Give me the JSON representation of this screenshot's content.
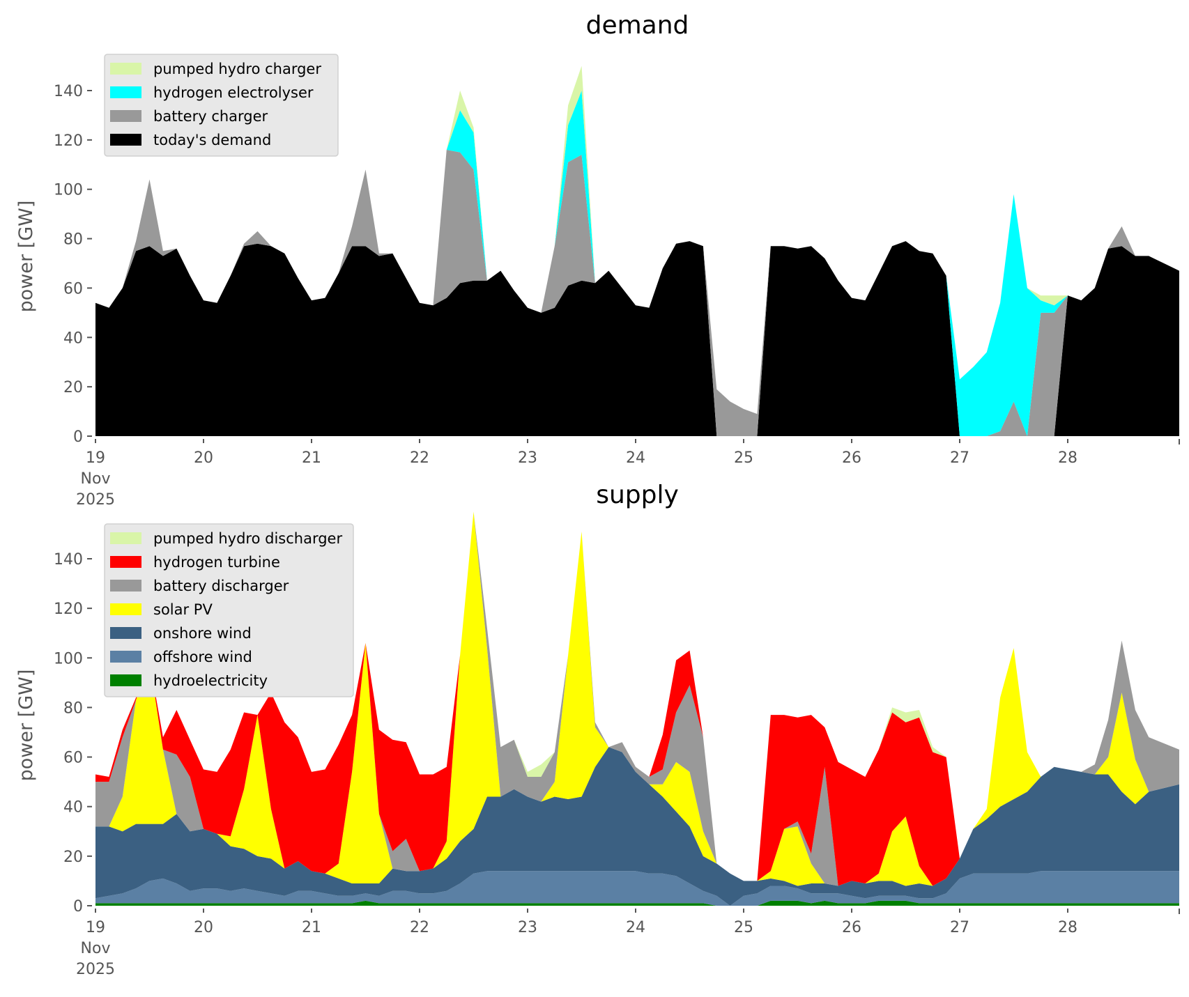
{
  "chart_data": [
    {
      "type": "area",
      "stacked": true,
      "title": "demand",
      "ylabel": "power [GW]",
      "xlabel": "",
      "ylim": [
        0,
        155
      ],
      "xlim": [
        19,
        29
      ],
      "x_start_day": 19,
      "x_step_days": 0.125,
      "yticks": [
        "0",
        "20",
        "40",
        "60",
        "80",
        "100",
        "120",
        "140"
      ],
      "ytick_values": [
        0,
        20,
        40,
        60,
        80,
        100,
        120,
        140
      ],
      "xticks": [
        "19",
        "20",
        "21",
        "22",
        "23",
        "24",
        "25",
        "26",
        "27",
        "28"
      ],
      "xtick_values": [
        19,
        20,
        21,
        22,
        23,
        24,
        25,
        26,
        27,
        28
      ],
      "xtick_sub": [
        "Nov",
        "2025"
      ],
      "legend_position": "top-left",
      "series": [
        {
          "name": "today's demand",
          "color": "#000000",
          "values": [
            54,
            52,
            60,
            75,
            77,
            73,
            76,
            65,
            55,
            54,
            65,
            77,
            78,
            77,
            74,
            64,
            55,
            56,
            66,
            77,
            77,
            73,
            74,
            64,
            54,
            53,
            56,
            62,
            63,
            63,
            67,
            59,
            52,
            50,
            52,
            61,
            63,
            62,
            67,
            60,
            53,
            52,
            68,
            78,
            79,
            77,
            0,
            0,
            0,
            0,
            77,
            77,
            76,
            77,
            72,
            63,
            56,
            55,
            66,
            77,
            79,
            75,
            74,
            65,
            0,
            0,
            0,
            0,
            0,
            0,
            0,
            0,
            57,
            55,
            60,
            76,
            77,
            73,
            73,
            67
          ]
        },
        {
          "name": "battery charger",
          "color": "#999999",
          "values": [
            0,
            0,
            0,
            4,
            27,
            2,
            0,
            0,
            0,
            0,
            0,
            1,
            5,
            0,
            0,
            0,
            0,
            0,
            0,
            8,
            31,
            1,
            0,
            0,
            0,
            0,
            60,
            53,
            45,
            0,
            0,
            0,
            0,
            0,
            25,
            50,
            51,
            0,
            0,
            0,
            0,
            0,
            0,
            0,
            0,
            0,
            19,
            14,
            11,
            9,
            0,
            0,
            0,
            0,
            0,
            0,
            0,
            0,
            0,
            0,
            0,
            0,
            0,
            0,
            0,
            0,
            0,
            2,
            14,
            0,
            50,
            50,
            0,
            0,
            0,
            0,
            8,
            0,
            0,
            0
          ]
        },
        {
          "name": "hydrogen electrolyser",
          "color": "#00ffff",
          "values": [
            0,
            0,
            0,
            0,
            0,
            0,
            0,
            0,
            0,
            0,
            0,
            0,
            0,
            0,
            0,
            0,
            0,
            0,
            0,
            0,
            0,
            0,
            0,
            0,
            0,
            0,
            0,
            17,
            15,
            0,
            0,
            0,
            0,
            0,
            0,
            15,
            26,
            0,
            0,
            0,
            0,
            0,
            0,
            0,
            0,
            0,
            0,
            0,
            0,
            0,
            0,
            0,
            0,
            0,
            0,
            0,
            0,
            0,
            0,
            0,
            0,
            0,
            0,
            0,
            23,
            28,
            34,
            52,
            84,
            60,
            5,
            3,
            0,
            0,
            0,
            0,
            0,
            0,
            0,
            0
          ]
        },
        {
          "name": "pumped hydro charger",
          "color": "#d9f5a8",
          "values": [
            0,
            0,
            0,
            0,
            0,
            0,
            0,
            0,
            0,
            0,
            0,
            0,
            0,
            0,
            0,
            0,
            0,
            0,
            0,
            0,
            0,
            0,
            0,
            0,
            0,
            0,
            0,
            8,
            2,
            0,
            0,
            0,
            0,
            0,
            0,
            8,
            10,
            0,
            0,
            0,
            0,
            0,
            0,
            0,
            0,
            0,
            0,
            0,
            0,
            0,
            0,
            0,
            0,
            0,
            0,
            0,
            0,
            0,
            0,
            0,
            0,
            0,
            0,
            0,
            0,
            0,
            0,
            0,
            0,
            0,
            2,
            4,
            0,
            0,
            0,
            0,
            0,
            0,
            0,
            0
          ]
        }
      ]
    },
    {
      "type": "area",
      "stacked": true,
      "title": "supply",
      "ylabel": "power [GW]",
      "xlabel": "",
      "ylim": [
        0,
        155
      ],
      "xlim": [
        19,
        29
      ],
      "x_start_day": 19,
      "x_step_days": 0.125,
      "yticks": [
        "0",
        "20",
        "40",
        "60",
        "80",
        "100",
        "120",
        "140"
      ],
      "ytick_values": [
        0,
        20,
        40,
        60,
        80,
        100,
        120,
        140
      ],
      "xticks": [
        "19",
        "20",
        "21",
        "22",
        "23",
        "24",
        "25",
        "26",
        "27",
        "28"
      ],
      "xtick_values": [
        19,
        20,
        21,
        22,
        23,
        24,
        25,
        26,
        27,
        28
      ],
      "xtick_sub": [
        "Nov",
        "2025"
      ],
      "legend_position": "top-left",
      "series": [
        {
          "name": "hydroelectricity",
          "color": "#008000",
          "values": [
            1,
            1,
            1,
            1,
            1,
            1,
            1,
            1,
            1,
            1,
            1,
            1,
            1,
            1,
            1,
            1,
            1,
            1,
            1,
            1,
            2,
            1,
            1,
            1,
            1,
            1,
            1,
            1,
            1,
            1,
            1,
            1,
            1,
            1,
            1,
            1,
            1,
            1,
            1,
            1,
            1,
            1,
            1,
            1,
            1,
            1,
            0,
            0,
            0,
            0,
            2,
            2,
            2,
            1,
            2,
            1,
            1,
            1,
            2,
            2,
            2,
            1,
            1,
            1,
            1,
            1,
            1,
            1,
            1,
            1,
            1,
            1,
            1,
            1,
            1,
            1,
            1,
            1,
            1,
            1
          ]
        },
        {
          "name": "offshore wind",
          "color": "#5b80a4",
          "values": [
            2,
            3,
            4,
            6,
            9,
            10,
            8,
            5,
            6,
            6,
            5,
            6,
            5,
            4,
            3,
            5,
            5,
            4,
            3,
            3,
            3,
            3,
            5,
            5,
            4,
            4,
            5,
            8,
            12,
            13,
            13,
            13,
            13,
            13,
            13,
            13,
            13,
            13,
            13,
            13,
            13,
            12,
            12,
            11,
            8,
            5,
            4,
            0,
            4,
            5,
            6,
            6,
            5,
            4,
            3,
            4,
            3,
            2,
            2,
            2,
            2,
            2,
            2,
            4,
            10,
            12,
            12,
            12,
            12,
            12,
            13,
            13,
            13,
            13,
            13,
            13,
            13,
            13,
            13,
            13
          ]
        },
        {
          "name": "onshore wind",
          "color": "#3b6082",
          "values": [
            29,
            28,
            25,
            26,
            23,
            22,
            28,
            24,
            24,
            22,
            18,
            16,
            14,
            14,
            11,
            12,
            8,
            8,
            7,
            5,
            4,
            5,
            9,
            8,
            9,
            10,
            13,
            17,
            18,
            30,
            30,
            33,
            30,
            28,
            30,
            29,
            30,
            42,
            50,
            48,
            40,
            36,
            31,
            26,
            23,
            14,
            13,
            13,
            6,
            5,
            3,
            2,
            1,
            4,
            4,
            3,
            6,
            6,
            6,
            6,
            4,
            6,
            5,
            6,
            8,
            18,
            22,
            27,
            30,
            33,
            38,
            42,
            41,
            40,
            39,
            39,
            32,
            27,
            32,
            35
          ]
        },
        {
          "name": "solar PV",
          "color": "#ffff00",
          "values": [
            0,
            0,
            14,
            50,
            66,
            30,
            0,
            0,
            0,
            0,
            4,
            24,
            57,
            20,
            0,
            0,
            0,
            0,
            6,
            45,
            97,
            28,
            0,
            0,
            0,
            0,
            7,
            75,
            128,
            60,
            0,
            0,
            0,
            0,
            6,
            58,
            107,
            16,
            0,
            0,
            0,
            0,
            5,
            20,
            22,
            10,
            0,
            0,
            0,
            0,
            3,
            21,
            24,
            8,
            0,
            0,
            0,
            0,
            3,
            20,
            28,
            7,
            0,
            0,
            0,
            0,
            4,
            44,
            61,
            16,
            0,
            0,
            0,
            0,
            0,
            7,
            40,
            18,
            0,
            0
          ]
        },
        {
          "name": "battery discharger",
          "color": "#999999",
          "values": [
            18,
            18,
            24,
            0,
            0,
            0,
            24,
            22,
            0,
            0,
            0,
            0,
            0,
            0,
            0,
            0,
            0,
            0,
            0,
            0,
            0,
            0,
            7,
            13,
            0,
            0,
            0,
            0,
            0,
            8,
            20,
            20,
            8,
            10,
            12,
            0,
            0,
            2,
            0,
            4,
            2,
            3,
            6,
            20,
            35,
            38,
            0,
            0,
            0,
            0,
            0,
            0,
            2,
            4,
            47,
            0,
            0,
            0,
            0,
            0,
            0,
            0,
            0,
            0,
            0,
            0,
            0,
            0,
            0,
            0,
            0,
            0,
            0,
            0,
            4,
            15,
            21,
            20,
            22,
            14
          ]
        },
        {
          "name": "hydrogen turbine",
          "color": "#ff0000",
          "values": [
            3,
            2,
            3,
            1,
            0,
            5,
            18,
            15,
            24,
            25,
            35,
            31,
            0,
            47,
            59,
            50,
            40,
            42,
            48,
            23,
            0,
            34,
            45,
            39,
            39,
            38,
            30,
            0,
            0,
            0,
            0,
            0,
            0,
            0,
            0,
            0,
            0,
            0,
            0,
            0,
            0,
            0,
            14,
            21,
            14,
            0,
            0,
            0,
            0,
            0,
            63,
            46,
            42,
            56,
            16,
            50,
            45,
            43,
            50,
            48,
            38,
            60,
            54,
            49,
            0,
            0,
            0,
            0,
            0,
            0,
            0,
            0,
            0,
            0,
            0,
            0,
            0,
            0,
            0,
            0
          ]
        },
        {
          "name": "pumped hydro discharger",
          "color": "#d9f5a8",
          "values": [
            0,
            0,
            0,
            0,
            0,
            0,
            0,
            0,
            0,
            0,
            0,
            0,
            0,
            0,
            0,
            0,
            0,
            0,
            0,
            0,
            0,
            0,
            0,
            0,
            0,
            0,
            0,
            0,
            0,
            0,
            0,
            0,
            2,
            5,
            0,
            0,
            0,
            0,
            0,
            0,
            0,
            0,
            0,
            0,
            0,
            0,
            0,
            0,
            0,
            0,
            0,
            0,
            0,
            0,
            0,
            0,
            0,
            0,
            0,
            2,
            4,
            3,
            2,
            0,
            0,
            0,
            0,
            0,
            0,
            0,
            0,
            0,
            0,
            0,
            0,
            0,
            0,
            0,
            0,
            0
          ]
        }
      ]
    }
  ]
}
